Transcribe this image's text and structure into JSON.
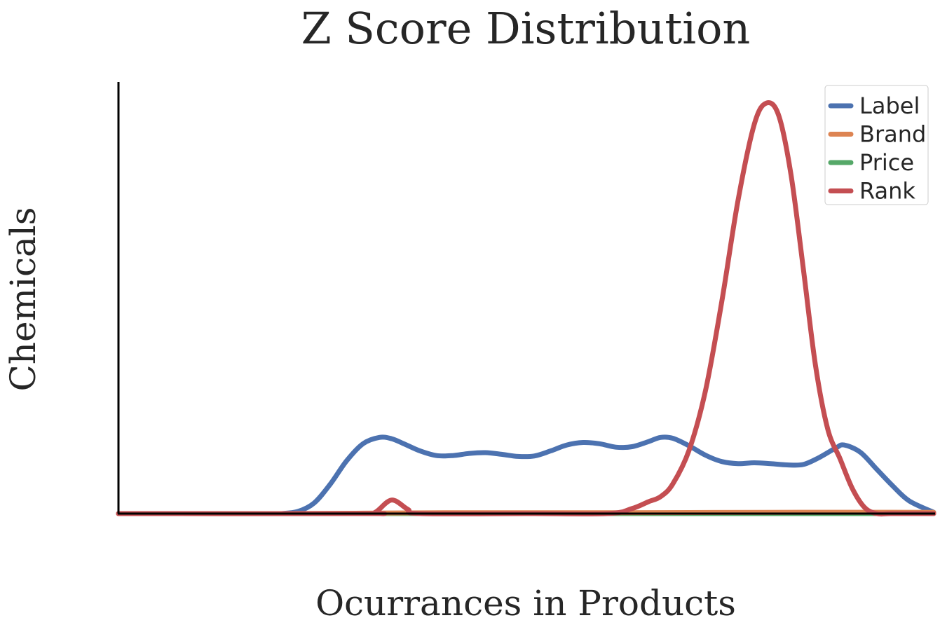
{
  "chart_data": {
    "type": "line",
    "title": "Z Score Distribution",
    "xlabel": "Ocurrances in Products",
    "ylabel": "Chemicals",
    "xlim": [
      0,
      100
    ],
    "ylim": [
      0,
      1
    ],
    "grid": false,
    "legend_position": "top-right",
    "series": [
      {
        "name": "Label",
        "color": "#4c72b0",
        "x": [
          20,
          22,
          24,
          26,
          28,
          30,
          32,
          33.5,
          35,
          37,
          39,
          41,
          43,
          45,
          47,
          49,
          51,
          53,
          55,
          57,
          59,
          61,
          63,
          65,
          66.5,
          68,
          70,
          72,
          74,
          76,
          78,
          80,
          82,
          84,
          86,
          88,
          89,
          91,
          93,
          95,
          97,
          100
        ],
        "y": [
          0.0,
          0.005,
          0.025,
          0.07,
          0.125,
          0.165,
          0.18,
          0.177,
          0.165,
          0.148,
          0.137,
          0.137,
          0.142,
          0.144,
          0.14,
          0.135,
          0.136,
          0.148,
          0.162,
          0.168,
          0.165,
          0.157,
          0.158,
          0.17,
          0.18,
          0.178,
          0.16,
          0.138,
          0.123,
          0.118,
          0.12,
          0.118,
          0.115,
          0.116,
          0.133,
          0.155,
          0.162,
          0.145,
          0.105,
          0.065,
          0.03,
          0.003
        ]
      },
      {
        "name": "Brand",
        "color": "#dd8452",
        "x": [
          0,
          20,
          40,
          60,
          80,
          100
        ],
        "y": [
          0.0,
          0.0,
          0.002,
          0.002,
          0.003,
          0.003
        ]
      },
      {
        "name": "Price",
        "color": "#55a868",
        "x": [
          0,
          100
        ],
        "y": [
          0.0,
          0.0
        ]
      },
      {
        "name": "Rank",
        "color": "#c44e52",
        "x": [
          0,
          30,
          31.5,
          33.5,
          35.5,
          37,
          50,
          60,
          63,
          65,
          66.5,
          68,
          70,
          72,
          74,
          76,
          78,
          79.5,
          81,
          82.5,
          84,
          85.5,
          87,
          88.5,
          90,
          91.5,
          93,
          95,
          100
        ],
        "y": [
          0.0,
          0.0,
          0.003,
          0.032,
          0.01,
          0.0,
          0.0,
          0.0,
          0.012,
          0.028,
          0.04,
          0.07,
          0.15,
          0.29,
          0.5,
          0.74,
          0.92,
          0.97,
          0.94,
          0.8,
          0.58,
          0.35,
          0.2,
          0.13,
          0.06,
          0.015,
          0.0,
          0.0,
          0.0
        ]
      }
    ]
  }
}
